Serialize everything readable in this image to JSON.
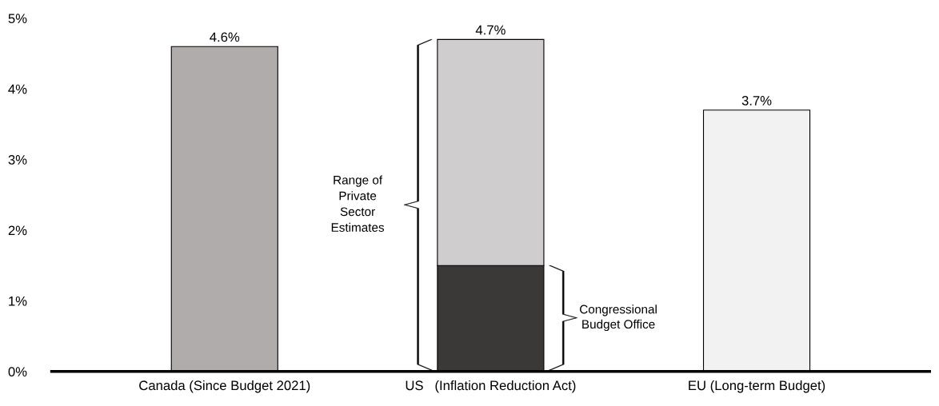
{
  "chart_data": {
    "type": "bar",
    "stacked": true,
    "categories": [
      "Canada (Since Budget 2021)",
      "US   (Inflation Reduction Act)",
      "EU (Long-term Budget)"
    ],
    "series": [
      {
        "colors": [
          "#b0acab",
          "#3a3938",
          "#f2f2f2"
        ],
        "values": [
          4.6,
          1.5,
          3.7
        ]
      },
      {
        "color": "#d0cdce",
        "values": [
          null,
          3.2,
          null
        ]
      }
    ],
    "totals": [
      "4.6%",
      "4.7%",
      "3.7%"
    ],
    "ylim": [
      0,
      5
    ],
    "yticks": [
      {
        "value": 0,
        "label": "0%"
      },
      {
        "value": 1,
        "label": "1%"
      },
      {
        "value": 2,
        "label": "2%"
      },
      {
        "value": 3,
        "label": "3%"
      },
      {
        "value": 4,
        "label": "4%"
      },
      {
        "value": 5,
        "label": "5%"
      }
    ],
    "annotations": [
      "Range of\nPrivate\nSector\nEstimates",
      "Congressional\nBudget Office"
    ],
    "grid": false,
    "legend": false
  }
}
